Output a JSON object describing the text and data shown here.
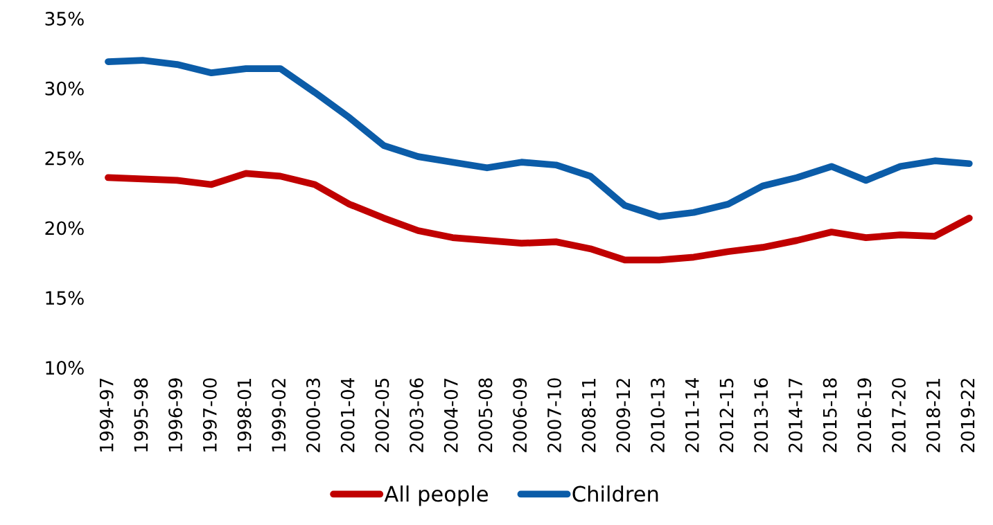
{
  "chart_data": {
    "type": "line",
    "categories": [
      "1994-97",
      "1995-98",
      "1996-99",
      "1997-00",
      "1998-01",
      "1999-02",
      "2000-03",
      "2001-04",
      "2002-05",
      "2003-06",
      "2004-07",
      "2005-08",
      "2006-09",
      "2007-10",
      "2008-11",
      "2009-12",
      "2010-13",
      "2011-14",
      "2012-15",
      "2013-16",
      "2014-17",
      "2015-18",
      "2016-19",
      "2017-20",
      "2018-21",
      "2019-22"
    ],
    "series": [
      {
        "name": "All people",
        "color": "#c00000",
        "values": [
          23.6,
          23.5,
          23.4,
          23.1,
          23.9,
          23.7,
          23.1,
          21.7,
          20.7,
          19.8,
          19.3,
          19.1,
          18.9,
          19.0,
          18.5,
          17.7,
          17.7,
          17.9,
          18.3,
          18.6,
          19.1,
          19.7,
          19.3,
          19.5,
          19.4,
          20.7
        ]
      },
      {
        "name": "Children",
        "color": "#0b5ca8",
        "values": [
          31.9,
          32.0,
          31.7,
          31.1,
          31.4,
          31.4,
          29.7,
          27.9,
          25.9,
          25.1,
          24.7,
          24.3,
          24.7,
          24.5,
          23.7,
          21.6,
          20.8,
          21.1,
          21.7,
          23.0,
          23.6,
          24.4,
          23.4,
          24.4,
          24.8,
          24.6
        ]
      }
    ],
    "ylim": [
      10,
      35
    ],
    "yticks": [
      {
        "value": 10,
        "label": "10%"
      },
      {
        "value": 15,
        "label": "15%"
      },
      {
        "value": 20,
        "label": "20%"
      },
      {
        "value": 25,
        "label": "25%"
      },
      {
        "value": 30,
        "label": "30%"
      },
      {
        "value": 35,
        "label": "35%"
      }
    ],
    "grid": false,
    "legend": "bottom",
    "line_style": "solid",
    "marker": "none"
  }
}
